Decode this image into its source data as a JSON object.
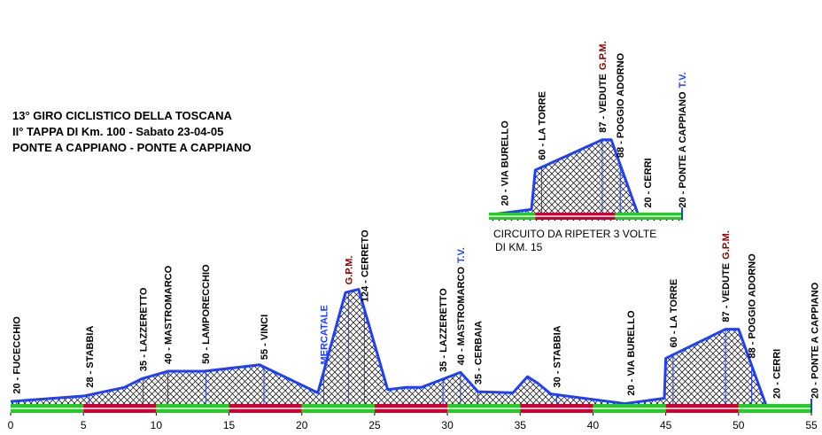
{
  "chart_data": [
    {
      "type": "area",
      "title": [
        "13° GIRO CICLISTICO DELLA TOSCANA",
        "II° TAPPA DI Km. 100 - Sabato 23-04-05",
        "PONTE A CAPPIANO - PONTE A CAPPIANO"
      ],
      "x": [
        0,
        5,
        7.8,
        9,
        10.8,
        13.3,
        17.1,
        21.1,
        23,
        23.9,
        25.9,
        27.1,
        28.2,
        30.9,
        32.1,
        34.5,
        35.5,
        36.2,
        37.1,
        42.2,
        44.9,
        45,
        49.1,
        50,
        51.9,
        55
      ],
      "values": [
        19,
        24,
        32,
        40,
        47,
        47,
        53,
        27,
        120,
        123,
        30,
        32,
        32,
        46,
        28,
        27,
        42,
        36,
        26,
        17,
        22,
        59,
        86,
        86,
        15,
        15
      ],
      "color": "#1f3fff",
      "xlim": [
        0,
        55
      ],
      "ylim": [
        15,
        130
      ],
      "xticks": [
        0,
        5,
        10,
        15,
        20,
        25,
        30,
        35,
        40,
        45,
        50,
        55
      ],
      "band_colors": [
        "#22cc22",
        "#cc0033",
        "#22cc22",
        "#cc0033",
        "#22cc22",
        "#cc0033",
        "#22cc22",
        "#cc0033",
        "#22cc22",
        "#cc0033",
        "#22cc22"
      ],
      "labels": [
        {
          "km": 0.4,
          "text": "20 - FUCECCHIO"
        },
        {
          "km": 5.4,
          "text": "28 - STABBIA"
        },
        {
          "km": 9.1,
          "text": "35 - LAZZERETTO"
        },
        {
          "km": 10.8,
          "text": "40 - MASTROMARCO"
        },
        {
          "km": 13.4,
          "text": "50 - LAMPORECCHIO"
        },
        {
          "km": 17.4,
          "text": "55 - VINCI"
        },
        {
          "km": 21.5,
          "text": "MERCATALE",
          "color": "#1f3fff"
        },
        {
          "km": 23.2,
          "text": "G.P.M.",
          "color": "#8b0000"
        },
        {
          "km": 24.3,
          "text": "124 - CERRETO"
        },
        {
          "km": 29.7,
          "text": "35 - LAZZERETTO"
        },
        {
          "km": 30.9,
          "text": "40 - MASTROMARCO",
          "suffix": "T.V.",
          "suffix_color": "#1f3fff"
        },
        {
          "km": 32.1,
          "text": "35 - CERBAIA"
        },
        {
          "km": 37.5,
          "text": "30 - STABBIA"
        },
        {
          "km": 42.6,
          "text": "20 - VIA BURELLO"
        },
        {
          "km": 45.5,
          "text": "60 - LA TORRE"
        },
        {
          "km": 49.1,
          "text": "87 - VEDUTE",
          "suffix": "G.P.M.",
          "suffix_color": "#8b0000"
        },
        {
          "km": 50.9,
          "text": "88 - POGGIO ADORNO"
        },
        {
          "km": 52.6,
          "text": "20 - CERRI"
        },
        {
          "km": 55.2,
          "text": "20 - PONTE A CAPPIANO"
        }
      ]
    },
    {
      "type": "area",
      "subtitle": [
        "CIRCUITO DA RIPETER 3 VOLTE",
        "DI KM. 15"
      ],
      "x": [
        0,
        3.3,
        3.6,
        8.8,
        9.5,
        11.6,
        15
      ],
      "values": [
        20,
        25,
        60,
        87,
        87,
        20,
        20
      ],
      "color": "#1f3fff",
      "xlim": [
        0,
        15
      ],
      "ylim": [
        15,
        90
      ],
      "band_edges": [
        0,
        3.6,
        9.8,
        15
      ],
      "band_colors": [
        "#22cc22",
        "#cc0033",
        "#22cc22"
      ],
      "labels": [
        {
          "km": 1.2,
          "text": "20 - VIA BURELLO"
        },
        {
          "km": 4.1,
          "text": "60 - LA TORRE"
        },
        {
          "km": 8.8,
          "text": "87 - VEDUTE",
          "suffix": "G.P.M.",
          "suffix_color": "#8b0000"
        },
        {
          "km": 10.2,
          "text": "88 - POGGIO ADORNO"
        },
        {
          "km": 12.3,
          "text": "20 - CERRI"
        },
        {
          "km": 15,
          "text": "20 - PONTE A CAPPIANO",
          "suffix": "T.V.",
          "suffix_color": "#1f3fff"
        }
      ]
    }
  ]
}
